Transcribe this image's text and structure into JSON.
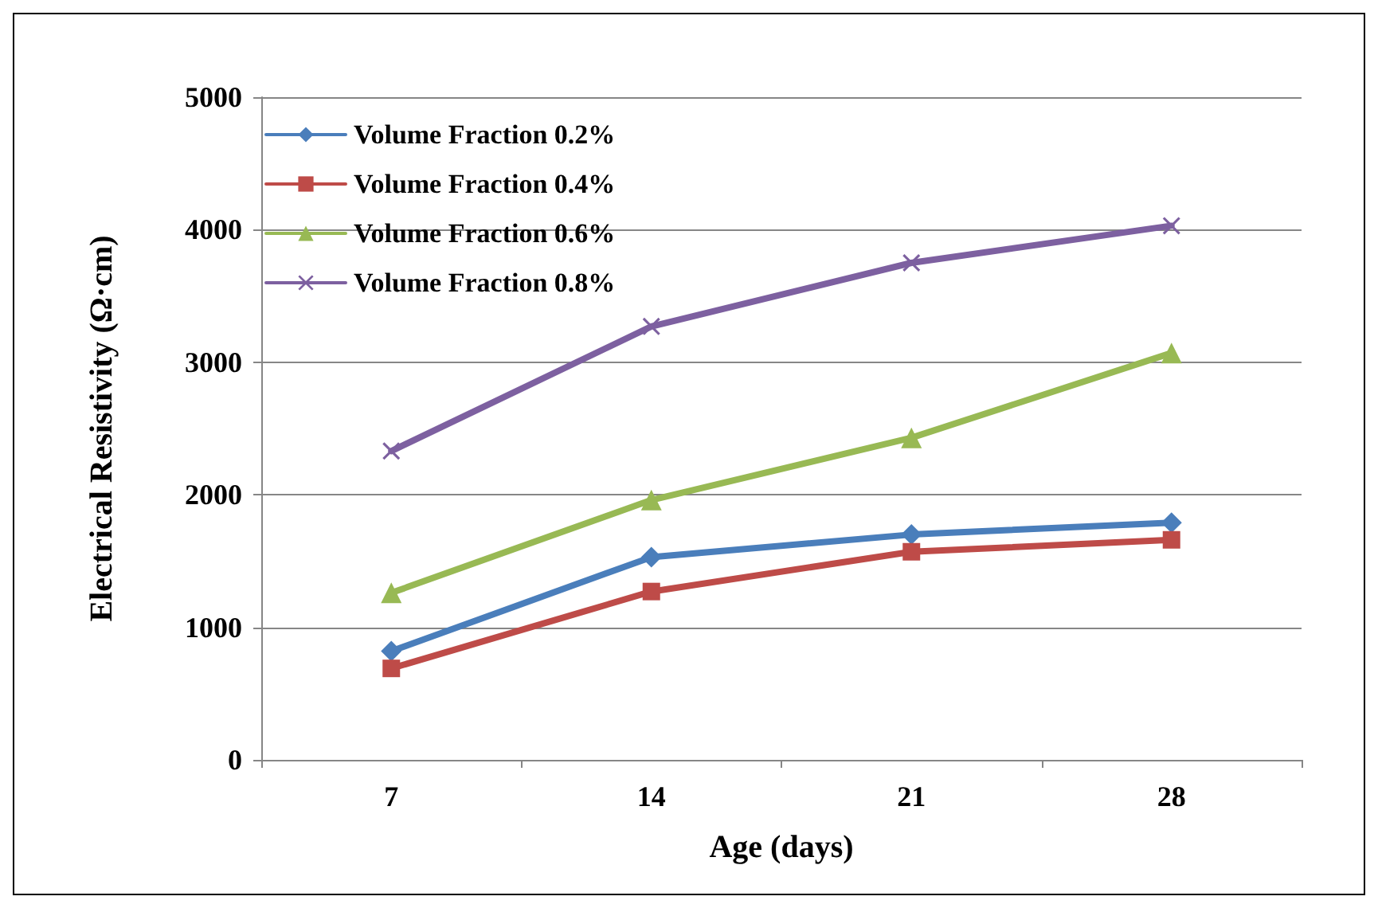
{
  "chart_data": {
    "type": "line",
    "xlabel": "Age (days)",
    "ylabel": "Electrical Resistivity (Ω·cm)",
    "categories": [
      "7",
      "14",
      "21",
      "28"
    ],
    "series": [
      {
        "name": "Volume Fraction 0.2%",
        "color": "#4a7ebb",
        "marker": "diamond",
        "values": [
          820,
          1530,
          1700,
          1790
        ]
      },
      {
        "name": "Volume Fraction 0.4%",
        "color": "#be4b48",
        "marker": "square",
        "values": [
          690,
          1270,
          1570,
          1660
        ]
      },
      {
        "name": "Volume Fraction 0.6%",
        "color": "#98b954",
        "marker": "triangle",
        "values": [
          1260,
          1960,
          2430,
          3070
        ]
      },
      {
        "name": "Volume Fraction 0.8%",
        "color": "#7d60a0",
        "marker": "cross",
        "values": [
          2330,
          3270,
          3750,
          4030
        ]
      }
    ],
    "ylim": [
      0,
      5000
    ],
    "yticks": [
      0,
      1000,
      2000,
      3000,
      4000,
      5000
    ],
    "grid": "y",
    "legend": "top left",
    "line_style": "solid"
  }
}
